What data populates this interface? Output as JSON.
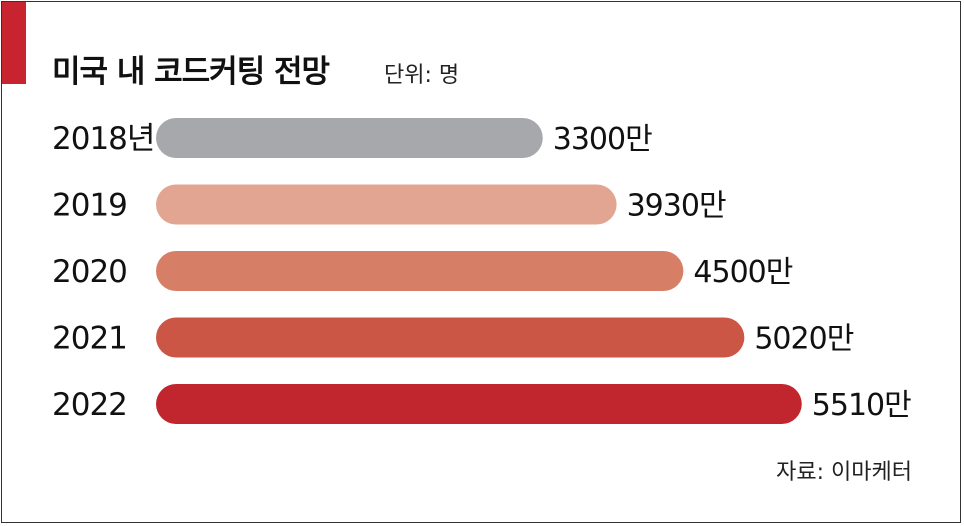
{
  "title": "미국 내 코드커팅 전망",
  "unit": "단위: 명",
  "source": "자료: 이마케터",
  "accent_color": "#c8242f",
  "chart_data": {
    "type": "bar",
    "orientation": "horizontal",
    "categories": [
      "2018년",
      "2019",
      "2020",
      "2021",
      "2022"
    ],
    "values": [
      3300,
      3930,
      4500,
      5020,
      5510
    ],
    "value_labels": [
      "3300만",
      "3930만",
      "4500만",
      "5020만",
      "5510만"
    ],
    "colors": [
      "#a7a8ac",
      "#e2a591",
      "#d77e67",
      "#cc5645",
      "#c1262e"
    ],
    "grid": false,
    "legend": "none"
  }
}
